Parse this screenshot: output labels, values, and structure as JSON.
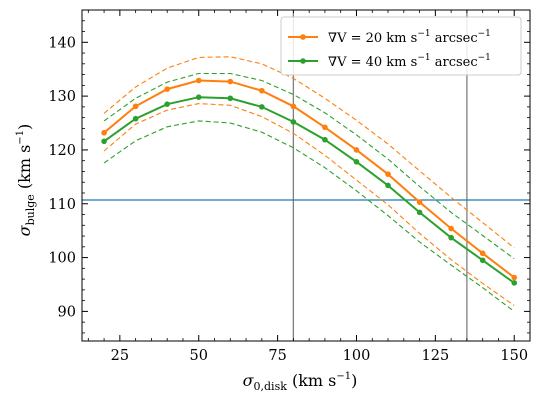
{
  "chart_data": {
    "type": "line",
    "xlim": [
      13,
      155
    ],
    "ylim": [
      84.5,
      146
    ],
    "x_ticks": [
      25,
      50,
      75,
      100,
      125,
      150
    ],
    "y_ticks": [
      90,
      100,
      110,
      120,
      130,
      140
    ],
    "xlabel": {
      "prefix": "σ",
      "sub": "0,disk",
      "unit": " (km s",
      "sup": "−1",
      "close": ")"
    },
    "ylabel": {
      "prefix": "σ",
      "sub": "bulge",
      "unit": " (km s",
      "sup": "−1",
      "close": ")"
    },
    "x": [
      20,
      30,
      40,
      50,
      60,
      70,
      80,
      90,
      100,
      110,
      120,
      130,
      140,
      150
    ],
    "series": [
      {
        "name": "∇V = 20 km s⁻¹ arcsec⁻¹",
        "legend": {
          "main": "∇V = 20 km s",
          "sup1": "−1",
          "tail": " arcsec",
          "sup2": "−1"
        },
        "color": "#ff7f0e",
        "values": [
          123.2,
          128.1,
          131.3,
          132.9,
          132.7,
          131.0,
          128.1,
          124.2,
          120.0,
          115.5,
          110.3,
          105.4,
          100.8,
          96.3
        ],
        "upper": [
          126.8,
          131.7,
          135.2,
          137.2,
          137.3,
          136.0,
          133.3,
          129.6,
          125.5,
          121.1,
          116.1,
          111.2,
          106.5,
          101.8
        ],
        "lower": [
          119.8,
          124.8,
          127.4,
          128.6,
          128.3,
          126.2,
          123.1,
          119.0,
          114.4,
          109.8,
          104.5,
          99.6,
          95.2,
          91.1
        ]
      },
      {
        "name": "∇V = 40 km s⁻¹ arcsec⁻¹",
        "legend": {
          "main": "∇V = 40 km s",
          "sup1": "−1",
          "tail": " arcsec",
          "sup2": "−1"
        },
        "color": "#2ca02c",
        "values": [
          121.6,
          125.8,
          128.5,
          129.8,
          129.6,
          128.0,
          125.2,
          121.9,
          117.8,
          113.4,
          108.4,
          103.7,
          99.5,
          95.3
        ],
        "upper": [
          125.4,
          129.6,
          132.6,
          134.2,
          134.2,
          132.9,
          130.3,
          126.9,
          122.8,
          118.3,
          113.2,
          108.4,
          104.1,
          99.8
        ],
        "lower": [
          117.6,
          121.7,
          124.3,
          125.4,
          125.0,
          123.3,
          120.4,
          116.7,
          112.4,
          107.8,
          102.9,
          98.6,
          94.4,
          90.0
        ]
      }
    ],
    "hlines": [
      {
        "y": 110.7,
        "color": "#1f77b4"
      }
    ],
    "vlines": [
      {
        "x": 80,
        "color": "#808080"
      },
      {
        "x": 135,
        "color": "#808080"
      }
    ],
    "legend_position": "top-right",
    "grid": false
  }
}
